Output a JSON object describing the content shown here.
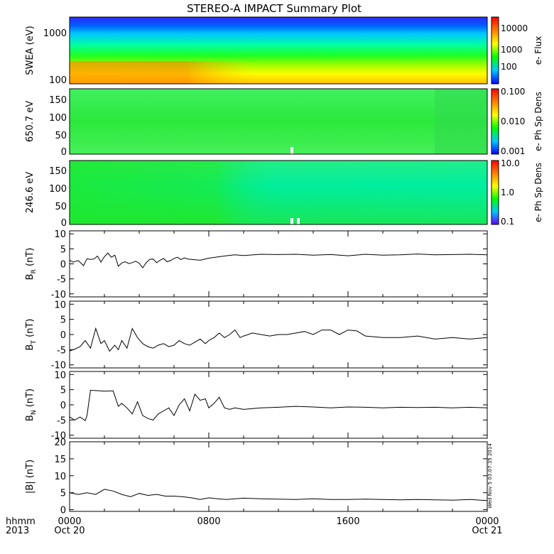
{
  "chart_data": {
    "title": "STEREO-A IMPACT Summary Plot",
    "type": "line",
    "x_axis": {
      "tick_labels": [
        "0000",
        "0800",
        "1600",
        "0000"
      ],
      "date_labels": [
        "Oct 20",
        "",
        "",
        "Oct 21"
      ],
      "corner_labels": [
        "hhmm",
        "2013"
      ],
      "range_hours": [
        0,
        24
      ]
    },
    "side_stamp": "Wed Nov  5 03:07:35 2014",
    "panels": [
      {
        "id": "swea",
        "type": "heatmap",
        "ylabel": "SWEA (eV)",
        "y_ticks": [
          "1000",
          "100"
        ],
        "colorbar": {
          "label": "e- Flux",
          "ticks": [
            "10000",
            "1000",
            "100"
          ],
          "colors": [
            "#0000ff",
            "#00c8ff",
            "#00ff00",
            "#ffff00",
            "#ff8000",
            "#ff0000"
          ]
        }
      },
      {
        "id": "pad650",
        "type": "heatmap",
        "ylabel": "650.7 eV",
        "y_ticks": [
          "150",
          "100",
          "50",
          "0"
        ],
        "colorbar": {
          "label": "e- Ph Sp Dens",
          "ticks": [
            "0.100",
            "0.010",
            "0.001"
          ],
          "colors": [
            "#0000ff",
            "#00c8ff",
            "#00ff00",
            "#ffff00",
            "#ff8000",
            "#ff0000"
          ]
        }
      },
      {
        "id": "pad246",
        "type": "heatmap",
        "ylabel": "246.6 eV",
        "y_ticks": [
          "150",
          "100",
          "50",
          "0"
        ],
        "colorbar": {
          "label": "e- Ph Sp Dens",
          "ticks": [
            "10.0",
            "1.0",
            "0.1"
          ],
          "colors": [
            "#6600ff",
            "#00c8ff",
            "#00ff00",
            "#ffff00",
            "#ff8000",
            "#ff0000"
          ]
        }
      },
      {
        "id": "br",
        "type": "line",
        "ylabel": "B",
        "ylabel_sub": "R",
        "ylabel_unit": "(nT)",
        "y_ticks": [
          "10",
          "5",
          "0",
          "-5",
          "-10"
        ],
        "ylim": [
          -11,
          11
        ],
        "x": [
          0,
          0.2,
          0.5,
          0.8,
          1.0,
          1.2,
          1.4,
          1.6,
          1.8,
          2.0,
          2.2,
          2.4,
          2.6,
          2.8,
          3.0,
          3.2,
          3.4,
          3.6,
          3.8,
          4.0,
          4.2,
          4.4,
          4.6,
          4.8,
          5.0,
          5.2,
          5.4,
          5.6,
          5.8,
          6.0,
          6.2,
          6.4,
          6.6,
          6.8,
          7.0,
          7.5,
          8.0,
          8.5,
          9.0,
          9.5,
          10.0,
          11,
          12,
          13,
          14,
          15,
          16,
          17,
          18,
          19,
          20,
          21,
          22,
          23,
          24
        ],
        "values": [
          1.2,
          0.6,
          1.1,
          -0.6,
          1.7,
          1.5,
          1.6,
          2.6,
          0.6,
          2.4,
          3.6,
          2.2,
          2.9,
          -0.8,
          0.3,
          0.7,
          0.1,
          0.4,
          0.9,
          0.2,
          -1.3,
          0.4,
          1.5,
          1.6,
          0.4,
          1.2,
          1.8,
          0.7,
          1.1,
          1.8,
          2.2,
          1.4,
          2.0,
          1.6,
          1.5,
          1.2,
          1.9,
          2.3,
          2.7,
          3.0,
          2.8,
          3.2,
          3.1,
          3.2,
          2.9,
          3.1,
          2.7,
          3.2,
          2.9,
          3.0,
          3.3,
          3.0,
          3.1,
          3.2,
          3.0
        ]
      },
      {
        "id": "bt",
        "type": "line",
        "ylabel": "B",
        "ylabel_sub": "T",
        "ylabel_unit": "(nT)",
        "y_ticks": [
          "10",
          "5",
          "0",
          "-5",
          "-10"
        ],
        "ylim": [
          -11,
          11
        ],
        "x": [
          0,
          0.3,
          0.6,
          0.9,
          1.2,
          1.5,
          1.8,
          2.0,
          2.3,
          2.6,
          2.8,
          3.0,
          3.3,
          3.6,
          3.9,
          4.2,
          4.5,
          4.8,
          5.1,
          5.4,
          5.7,
          6.0,
          6.3,
          6.6,
          6.9,
          7.2,
          7.5,
          7.8,
          8.0,
          8.3,
          8.6,
          8.9,
          9.2,
          9.5,
          9.8,
          10,
          10.5,
          11,
          11.5,
          12,
          12.5,
          13,
          13.5,
          14,
          14.5,
          15,
          15.5,
          16,
          16.5,
          17,
          18,
          19,
          20,
          21,
          22,
          23,
          24
        ],
        "values": [
          -5.4,
          -4.8,
          -4.0,
          -2.0,
          -4.5,
          2.0,
          -3.0,
          -2.0,
          -5.5,
          -3.5,
          -5.0,
          -2.0,
          -4.5,
          2.0,
          -1.0,
          -3.0,
          -4.0,
          -4.5,
          -3.5,
          -3.0,
          -4.0,
          -3.5,
          -2.0,
          -3.0,
          -3.5,
          -2.5,
          -1.5,
          -3.0,
          -2.0,
          -1.0,
          0.5,
          -1.0,
          0.0,
          1.5,
          -1.0,
          -0.5,
          0.5,
          0.0,
          -0.5,
          0.0,
          0.0,
          0.5,
          1.0,
          0.0,
          1.5,
          1.5,
          0.0,
          1.5,
          1.2,
          -0.5,
          -1.0,
          -1.0,
          -0.5,
          -1.5,
          -1.0,
          -1.5,
          -1.0
        ]
      },
      {
        "id": "bn",
        "type": "line",
        "ylabel": "B",
        "ylabel_sub": "N",
        "ylabel_unit": "(nT)",
        "y_ticks": [
          "10",
          "5",
          "0",
          "-5",
          "-10"
        ],
        "ylim": [
          -11,
          11
        ],
        "x": [
          0,
          0.3,
          0.6,
          0.9,
          1.0,
          1.2,
          1.5,
          2.0,
          2.5,
          2.8,
          3.0,
          3.3,
          3.6,
          3.9,
          4.2,
          4.5,
          4.8,
          5.1,
          5.4,
          5.7,
          6.0,
          6.3,
          6.6,
          6.9,
          7.2,
          7.5,
          7.8,
          8.0,
          8.3,
          8.6,
          8.9,
          9.2,
          9.5,
          10,
          11,
          12,
          13,
          14,
          15,
          16,
          17,
          18,
          19,
          20,
          21,
          22,
          23,
          24
        ],
        "values": [
          -4.0,
          -5.0,
          -4.0,
          -5.2,
          -3.5,
          4.8,
          4.7,
          4.5,
          4.6,
          -0.5,
          0.5,
          -1.0,
          -3.0,
          1.0,
          -3.5,
          -4.5,
          -5.0,
          -3.0,
          -2.0,
          -1.0,
          -3.5,
          0.0,
          2.0,
          -2.0,
          3.5,
          1.5,
          2.0,
          -1.0,
          0.5,
          2.5,
          -1.0,
          -1.5,
          -1.0,
          -1.5,
          -1.0,
          -0.8,
          -0.5,
          -0.7,
          -1.0,
          -0.7,
          -0.8,
          -1.0,
          -0.8,
          -0.9,
          -0.8,
          -1.0,
          -0.8,
          -1.0
        ]
      },
      {
        "id": "bmag",
        "type": "line",
        "ylabel": "|B| (nT)",
        "y_ticks": [
          "20",
          "15",
          "10",
          "5",
          "0"
        ],
        "ylim": [
          -0.5,
          20
        ],
        "x": [
          0,
          0.5,
          1.0,
          1.5,
          2.0,
          2.5,
          3.0,
          3.5,
          4.0,
          4.5,
          5.0,
          5.5,
          6.0,
          6.5,
          7.0,
          7.5,
          8.0,
          8.5,
          9.0,
          10,
          11,
          12,
          13,
          14,
          15,
          16,
          17,
          18,
          19,
          20,
          21,
          22,
          23,
          24
        ],
        "values": [
          5.0,
          4.5,
          5.0,
          4.5,
          6.0,
          5.5,
          4.5,
          3.8,
          4.8,
          4.2,
          4.5,
          4.0,
          4.0,
          3.8,
          3.5,
          3.0,
          3.5,
          3.2,
          3.0,
          3.4,
          3.2,
          3.1,
          3.0,
          3.2,
          3.0,
          3.0,
          3.1,
          3.0,
          2.9,
          3.0,
          2.9,
          2.8,
          3.0,
          2.7
        ]
      }
    ]
  }
}
